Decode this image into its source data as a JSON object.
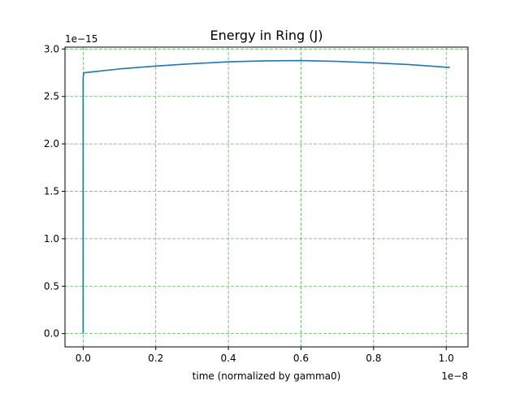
{
  "chart_data": {
    "type": "line",
    "title": "Energy in Ring (J)",
    "xlabel": "time (normalized by gamma0)",
    "ylabel": "",
    "x_offset_label": "1e−8",
    "y_offset_label": "1e−15",
    "x_multiplier": 1e-08,
    "y_multiplier": 1e-15,
    "xlim": [
      -0.05,
      1.06
    ],
    "ylim": [
      -0.14,
      3.02
    ],
    "x_ticks": [
      0.0,
      0.2,
      0.4,
      0.6,
      0.8,
      1.0
    ],
    "x_tick_labels": [
      "0.0",
      "0.2",
      "0.4",
      "0.6",
      "0.8",
      "1.0"
    ],
    "y_ticks": [
      0.0,
      0.5,
      1.0,
      1.5,
      2.0,
      2.5,
      3.0
    ],
    "y_tick_labels": [
      "0.0",
      "0.5",
      "1.0",
      "1.5",
      "2.0",
      "2.5",
      "3.0"
    ],
    "grid": true,
    "grid_color": "#5cb85c",
    "line_color": "#1f77b4",
    "series": [
      {
        "x": [
          0.0,
          0.0,
          0.002,
          0.1,
          0.2,
          0.3,
          0.4,
          0.5,
          0.6,
          0.7,
          0.8,
          0.9,
          1.01
        ],
        "values": [
          0.0,
          2.7,
          2.75,
          2.79,
          2.82,
          2.845,
          2.865,
          2.875,
          2.878,
          2.87,
          2.855,
          2.835,
          2.805
        ]
      }
    ]
  }
}
